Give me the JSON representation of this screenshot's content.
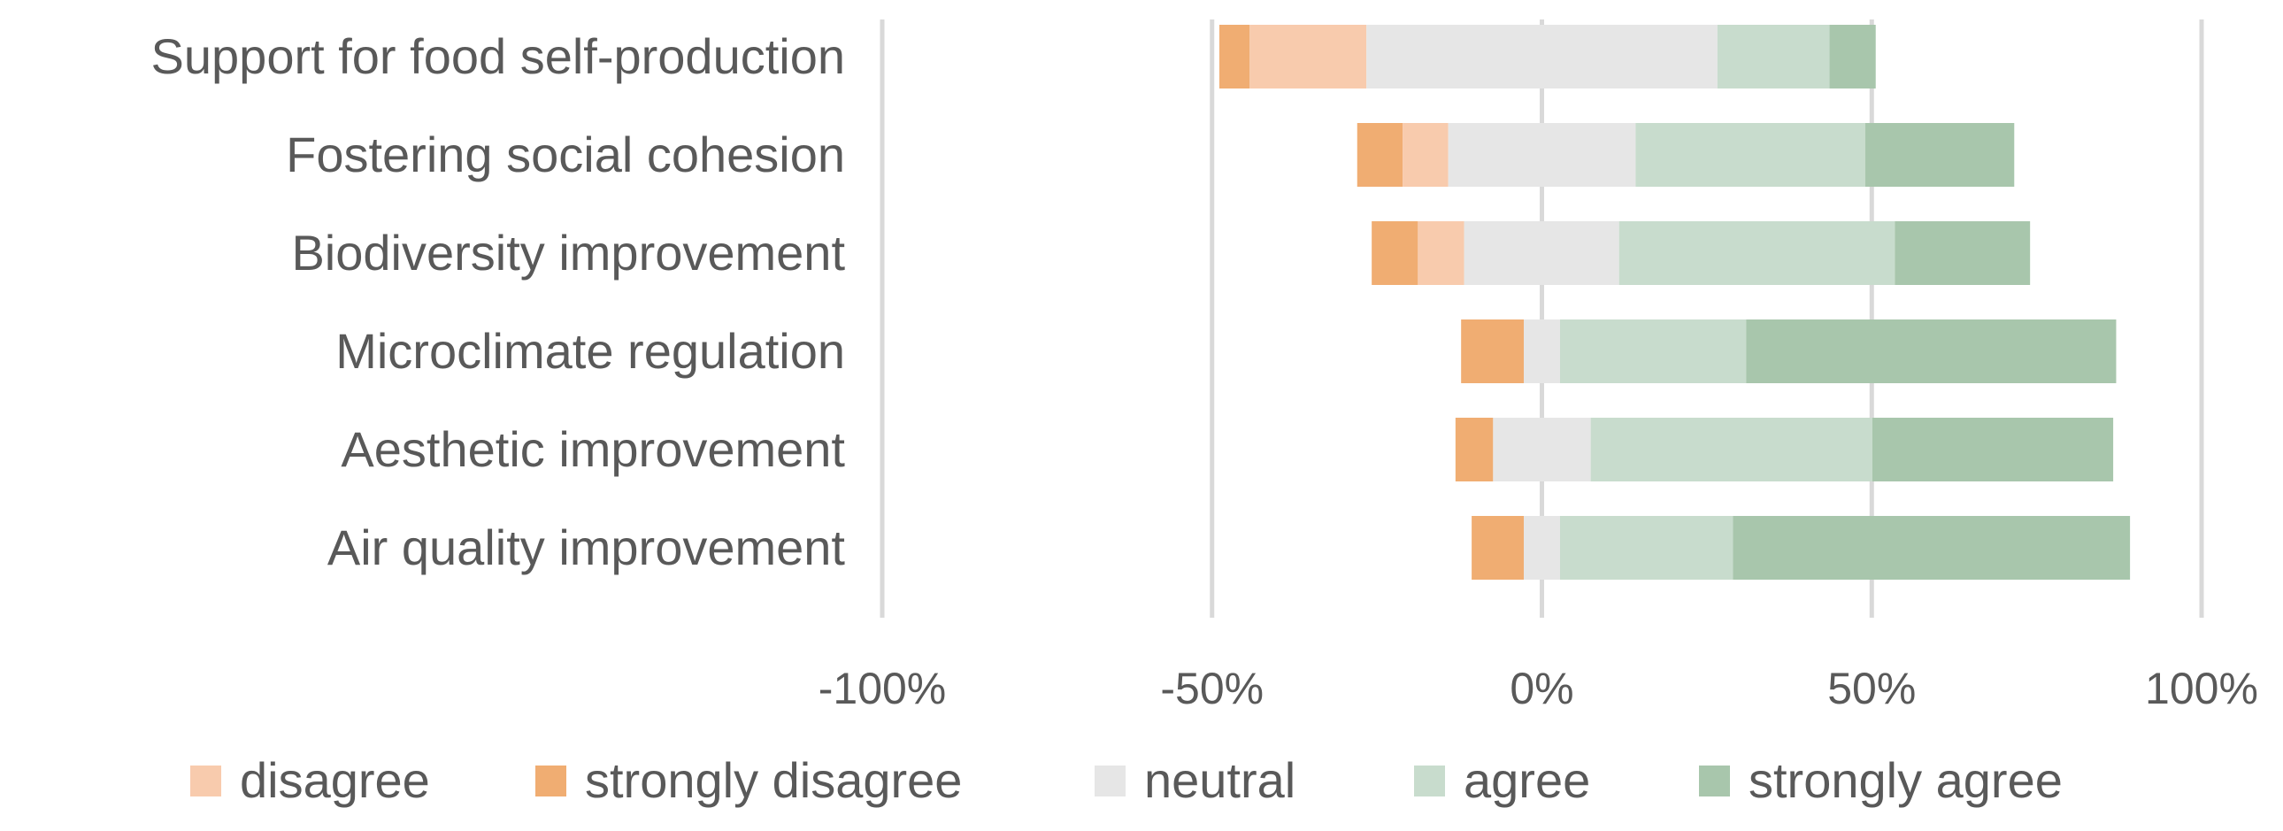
{
  "chart_data": {
    "type": "bar",
    "orientation": "horizontal",
    "stacked": "diverging",
    "title": "",
    "xlabel": "",
    "ylabel": "",
    "xlim": [
      -100,
      100
    ],
    "x_ticks": [
      -100,
      -50,
      0,
      50,
      100
    ],
    "x_tick_labels": [
      "-100%",
      "-50%",
      "0%",
      "50%",
      "100%"
    ],
    "grid": true,
    "legend_position": "bottom",
    "categories": [
      "Support for food self-production",
      "Fostering social cohesion",
      "Biodiversity improvement",
      "Microclimate regulation",
      "Aesthetic improvement",
      "Air quality improvement"
    ],
    "series": [
      {
        "name": "disagree",
        "color": "#f8cbad",
        "values": [
          17.7,
          6.9,
          7.0,
          0.0,
          0.0,
          0.0
        ]
      },
      {
        "name": "strongly disagree",
        "color": "#f0ad72",
        "values": [
          4.6,
          6.9,
          7.0,
          9.5,
          5.7,
          7.9
        ]
      },
      {
        "name": "neutral",
        "color": "#e6e6e6",
        "values": [
          53.2,
          28.4,
          23.5,
          5.5,
          14.8,
          5.5
        ]
      },
      {
        "name": "agree",
        "color": "#c8dccd",
        "values": [
          17.0,
          34.8,
          41.8,
          28.2,
          42.7,
          26.2
        ]
      },
      {
        "name": "strongly agree",
        "color": "#a8c6ac",
        "values": [
          7.0,
          22.6,
          20.5,
          56.1,
          36.5,
          60.2
        ]
      }
    ],
    "neutral_center_offset": [
      26.6,
      14.2,
      11.8,
      2.75,
      7.4,
      2.75
    ]
  }
}
